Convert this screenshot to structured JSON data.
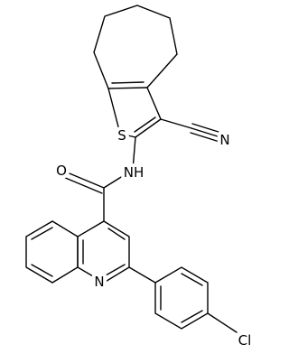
{
  "atoms": {
    "sulfur": "S",
    "nitrile_nitrogen": "N",
    "amide_nitrogen": "NH",
    "oxygen": "O",
    "quinoline_nitrogen": "N",
    "chlorine": "Cl"
  }
}
